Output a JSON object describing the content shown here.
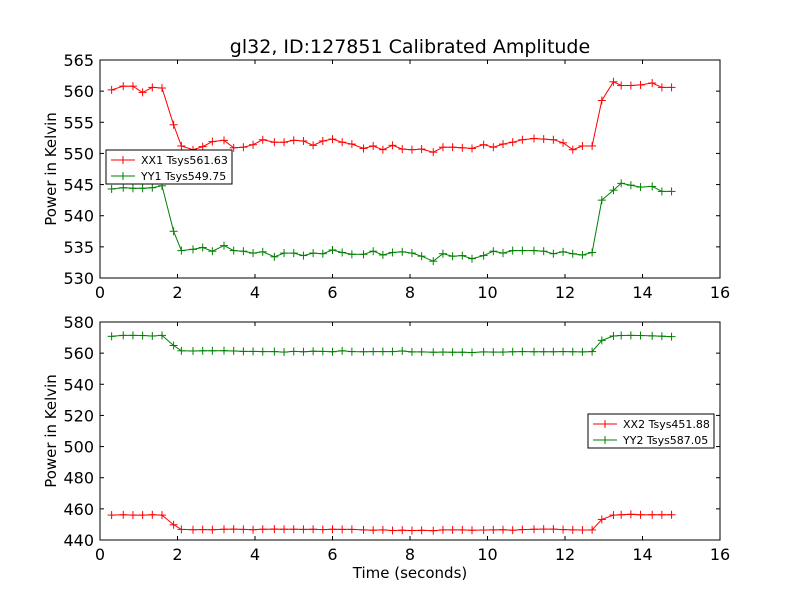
{
  "chart_data": [
    {
      "type": "line",
      "title": "gl32, ID:127851 Calibrated Amplitude",
      "xlabel": "",
      "ylabel": "Power in Kelvin",
      "xlim": [
        0,
        16
      ],
      "ylim": [
        530,
        565
      ],
      "xticks": [
        0,
        2,
        4,
        6,
        8,
        10,
        12,
        14,
        16
      ],
      "yticks": [
        530,
        535,
        540,
        545,
        550,
        555,
        560,
        565
      ],
      "grid": false,
      "legend_position": "center-left",
      "x": [
        0.3,
        0.6,
        0.85,
        1.1,
        1.35,
        1.6,
        1.9,
        2.1,
        2.4,
        2.65,
        2.9,
        3.2,
        3.45,
        3.7,
        3.95,
        4.2,
        4.5,
        4.75,
        5.0,
        5.25,
        5.5,
        5.75,
        6.0,
        6.25,
        6.5,
        6.8,
        7.05,
        7.3,
        7.55,
        7.8,
        8.05,
        8.3,
        8.6,
        8.85,
        9.1,
        9.35,
        9.6,
        9.9,
        10.15,
        10.4,
        10.65,
        10.9,
        11.2,
        11.45,
        11.7,
        11.95,
        12.2,
        12.45,
        12.7,
        12.95,
        13.25,
        13.45,
        13.7,
        13.95,
        14.25,
        14.5,
        14.75
      ],
      "series": [
        {
          "name": "XX1 Tsys561.63",
          "color": "#ff0000",
          "values": [
            560.2,
            560.8,
            560.8,
            559.8,
            560.6,
            560.5,
            554.6,
            551.2,
            550.6,
            551.1,
            551.9,
            552.1,
            550.9,
            551.0,
            551.4,
            552.2,
            551.8,
            551.8,
            552.1,
            552.0,
            551.3,
            552.0,
            552.3,
            551.8,
            551.5,
            550.8,
            551.2,
            550.6,
            551.3,
            550.7,
            550.6,
            550.7,
            550.2,
            551.0,
            551.0,
            550.9,
            550.8,
            551.4,
            551.0,
            551.5,
            551.8,
            552.2,
            552.4,
            552.3,
            552.2,
            551.7,
            550.6,
            551.2,
            551.2,
            558.5,
            561.5,
            560.9,
            560.9,
            561.0,
            561.3,
            560.6,
            560.6
          ]
        },
        {
          "name": "YY1 Tsys549.75",
          "color": "#008000",
          "values": [
            544.3,
            544.5,
            544.4,
            544.4,
            544.5,
            544.8,
            537.5,
            534.4,
            534.6,
            534.9,
            534.3,
            535.2,
            534.4,
            534.3,
            534.0,
            534.2,
            533.4,
            534.0,
            534.0,
            533.6,
            534.0,
            533.9,
            534.5,
            534.1,
            533.8,
            533.8,
            534.3,
            533.7,
            534.1,
            534.2,
            534.0,
            533.5,
            532.7,
            533.9,
            533.5,
            533.6,
            533.1,
            533.6,
            534.3,
            534.0,
            534.4,
            534.4,
            534.4,
            534.3,
            533.9,
            534.2,
            533.9,
            533.7,
            534.1,
            542.5,
            544.1,
            545.2,
            544.9,
            544.6,
            544.7,
            543.9,
            543.9
          ]
        }
      ]
    },
    {
      "type": "line",
      "title": "",
      "xlabel": "Time (seconds)",
      "ylabel": "Power in Kelvin",
      "xlim": [
        0,
        16
      ],
      "ylim": [
        440,
        580
      ],
      "xticks": [
        0,
        2,
        4,
        6,
        8,
        10,
        12,
        14,
        16
      ],
      "yticks": [
        440,
        460,
        480,
        500,
        520,
        540,
        560,
        580
      ],
      "grid": false,
      "legend_position": "center-right",
      "x": [
        0.3,
        0.6,
        0.85,
        1.1,
        1.35,
        1.6,
        1.9,
        2.1,
        2.4,
        2.65,
        2.9,
        3.2,
        3.45,
        3.7,
        3.95,
        4.2,
        4.5,
        4.75,
        5.0,
        5.25,
        5.5,
        5.75,
        6.0,
        6.25,
        6.5,
        6.8,
        7.05,
        7.3,
        7.55,
        7.8,
        8.05,
        8.3,
        8.6,
        8.85,
        9.1,
        9.35,
        9.6,
        9.9,
        10.15,
        10.4,
        10.65,
        10.9,
        11.2,
        11.45,
        11.7,
        11.95,
        12.2,
        12.45,
        12.7,
        12.95,
        13.25,
        13.45,
        13.7,
        13.95,
        14.25,
        14.5,
        14.75
      ],
      "series": [
        {
          "name": "XX2 Tsys451.88",
          "color": "#ff0000",
          "values": [
            456.0,
            456.2,
            456.0,
            456.0,
            456.2,
            456.0,
            449.8,
            446.8,
            446.6,
            446.7,
            446.6,
            446.9,
            447.0,
            446.8,
            446.6,
            446.9,
            447.0,
            446.9,
            446.9,
            446.8,
            446.9,
            446.7,
            446.9,
            446.8,
            446.8,
            446.5,
            446.3,
            446.5,
            446.1,
            446.3,
            446.1,
            446.2,
            446.0,
            446.5,
            446.5,
            446.5,
            446.3,
            446.4,
            446.5,
            446.6,
            446.3,
            446.7,
            446.9,
            447.0,
            447.0,
            446.7,
            446.5,
            446.4,
            446.5,
            453.2,
            456.0,
            456.2,
            456.5,
            456.2,
            456.2,
            456.2,
            456.2
          ]
        },
        {
          "name": "YY2 Tsys587.05",
          "color": "#008000",
          "values": [
            570.8,
            571.4,
            571.4,
            571.3,
            571.0,
            571.4,
            564.9,
            561.5,
            561.4,
            561.5,
            561.5,
            561.6,
            561.4,
            561.1,
            561.1,
            561.0,
            561.0,
            560.7,
            561.1,
            560.9,
            561.2,
            561.1,
            560.9,
            561.5,
            561.0,
            560.9,
            561.0,
            561.0,
            561.0,
            561.4,
            560.8,
            560.8,
            560.6,
            560.7,
            560.6,
            560.6,
            560.4,
            560.8,
            560.7,
            560.7,
            560.9,
            561.0,
            560.9,
            560.9,
            560.9,
            561.0,
            560.9,
            560.8,
            561.0,
            568.2,
            571.0,
            571.3,
            571.4,
            571.3,
            571.1,
            570.9,
            570.6
          ]
        }
      ]
    }
  ]
}
